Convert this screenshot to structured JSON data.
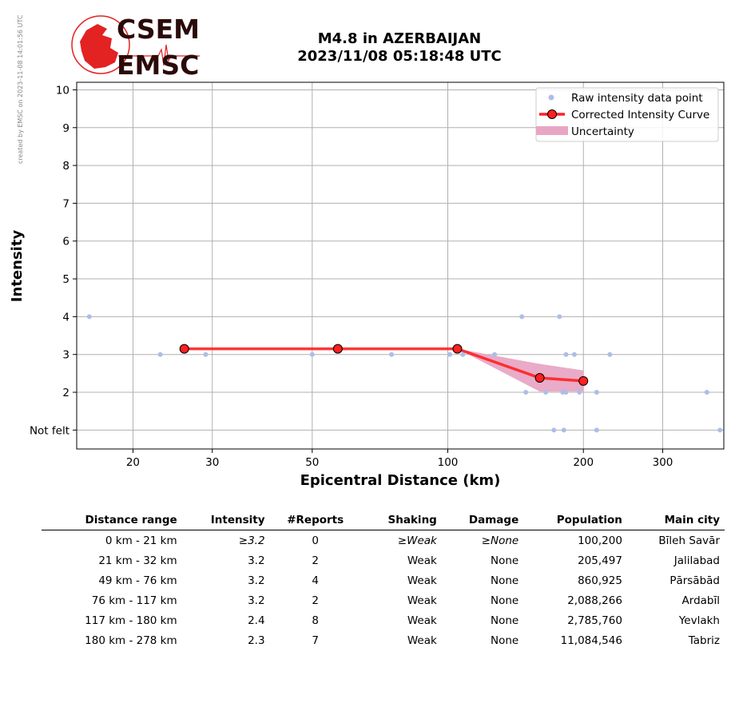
{
  "credit": "created by EMSC on 2023-11-08 14:01:56 UTC",
  "logo": {
    "line1": "CSEM",
    "line2": "EMSC"
  },
  "title": {
    "line1": "M4.8 in AZERBAIJAN",
    "line2": "2023/11/08 05:18:48 UTC"
  },
  "colors": {
    "raw": "#aebde8",
    "curve": "#ff2020",
    "uncertainty": "#e8a6c4",
    "logo_red": "#e32222",
    "logo_dark": "#2b0a0a"
  },
  "chart_data": {
    "type": "line",
    "xlabel": "Epicentral Distance (km)",
    "ylabel": "Intensity",
    "xscale": "log",
    "xlim": [
      15,
      410
    ],
    "ylim": [
      0.5,
      10.2
    ],
    "xticks": [
      20,
      30,
      50,
      100,
      200,
      300
    ],
    "yticks": [
      {
        "value": 1,
        "label": "Not felt"
      },
      {
        "value": 2,
        "label": "2"
      },
      {
        "value": 3,
        "label": "3"
      },
      {
        "value": 4,
        "label": "4"
      },
      {
        "value": 5,
        "label": "5"
      },
      {
        "value": 6,
        "label": "6"
      },
      {
        "value": 7,
        "label": "7"
      },
      {
        "value": 8,
        "label": "8"
      },
      {
        "value": 9,
        "label": "9"
      },
      {
        "value": 10,
        "label": "10"
      }
    ],
    "grid": true,
    "legend_position": "top-right",
    "legend": [
      "Raw intensity data point",
      "Corrected Intensity Curve",
      "Uncertainty"
    ],
    "raw_points": [
      [
        16,
        4
      ],
      [
        23,
        3
      ],
      [
        29,
        3
      ],
      [
        50,
        3
      ],
      [
        75,
        3
      ],
      [
        101,
        3
      ],
      [
        108,
        3
      ],
      [
        127,
        3
      ],
      [
        146,
        4
      ],
      [
        149,
        2
      ],
      [
        165,
        2
      ],
      [
        177,
        4
      ],
      [
        180,
        2
      ],
      [
        183,
        2
      ],
      [
        183,
        3
      ],
      [
        191,
        3
      ],
      [
        196,
        2
      ],
      [
        214,
        2
      ],
      [
        229,
        3
      ],
      [
        376,
        2
      ],
      [
        402,
        1
      ],
      [
        172,
        1
      ],
      [
        181,
        1
      ],
      [
        214,
        1
      ]
    ],
    "curve": [
      [
        26,
        3.15
      ],
      [
        57,
        3.15
      ],
      [
        105,
        3.15
      ],
      [
        160,
        2.38
      ],
      [
        200,
        2.3
      ]
    ],
    "uncertainty": {
      "x": [
        105,
        160,
        200
      ],
      "upper": [
        3.15,
        2.75,
        2.58
      ],
      "lower": [
        3.15,
        2.02,
        2.02
      ]
    }
  },
  "table": {
    "headers": [
      "Distance range",
      "Intensity",
      "#Reports",
      "Shaking",
      "Damage",
      "Population",
      "Main city"
    ],
    "rows": [
      [
        "0 km -   21 km",
        "≥3.2",
        "0",
        "≥Weak",
        "≥None",
        "100,200",
        "Bīleh Savār"
      ],
      [
        "21 km -   32 km",
        "3.2",
        "2",
        "Weak",
        "None",
        "205,497",
        "Jalilabad"
      ],
      [
        "49 km -   76 km",
        "3.2",
        "4",
        "Weak",
        "None",
        "860,925",
        "Pārsābād"
      ],
      [
        "76 km -  117 km",
        "3.2",
        "2",
        "Weak",
        "None",
        "2,088,266",
        "Ardabīl"
      ],
      [
        "117 km -  180 km",
        "2.4",
        "8",
        "Weak",
        "None",
        "2,785,760",
        "Yevlakh"
      ],
      [
        "180 km -  278 km",
        "2.3",
        "7",
        "Weak",
        "None",
        "11,084,546",
        "Tabriz"
      ]
    ]
  }
}
